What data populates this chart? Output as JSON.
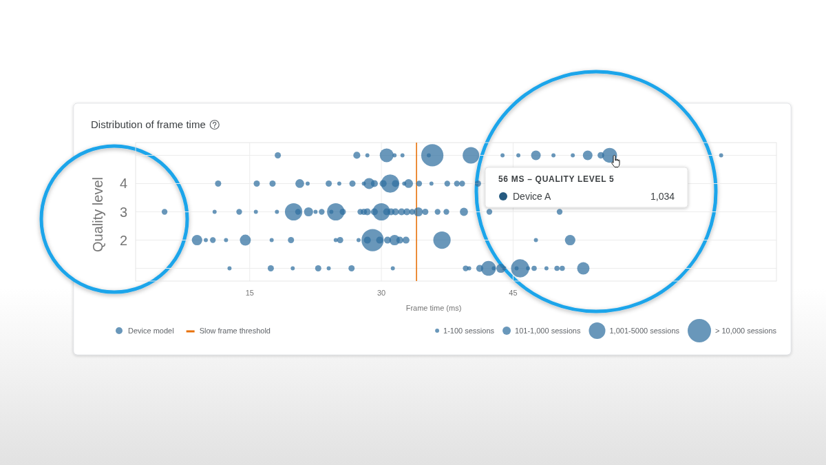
{
  "chart_data": {
    "type": "bubble",
    "title": "Distribution of frame time",
    "xlabel": "Frame time (ms)",
    "ylabel": "Quality level",
    "xlim": [
      2,
      75
    ],
    "xticks": [
      15,
      30,
      45
    ],
    "ylim": [
      0.55,
      5.45
    ],
    "yticks": [
      {
        "value": 1,
        "label": null
      },
      2,
      3,
      4,
      {
        "value": 5,
        "label": null
      }
    ],
    "grid": true,
    "legend": "bottom",
    "series": [
      {
        "name": "Device model",
        "color": "#2f6f9f",
        "x": [
          18.2,
          27.2,
          28.4,
          30.6,
          31.5,
          32.4,
          35.4,
          35.8,
          40.2,
          43.8,
          45.6,
          47.6,
          49.6,
          51.8,
          53.5,
          55.0,
          56.0,
          68.7,
          11.4,
          15.8,
          17.6,
          20.7,
          21.6,
          24.0,
          25.2,
          26.7,
          28.0,
          28.6,
          29.2,
          30.2,
          31.0,
          31.6,
          32.6,
          33.1,
          34.3,
          35.7,
          37.5,
          38.6,
          39.2,
          41.0,
          5.3,
          11.0,
          13.8,
          15.7,
          18.1,
          20.0,
          20.5,
          21.7,
          22.5,
          23.2,
          24.3,
          24.8,
          25.6,
          27.6,
          28.0,
          28.4,
          29.2,
          30.0,
          30.6,
          31.1,
          31.6,
          32.3,
          32.9,
          33.5,
          34.2,
          35.0,
          36.4,
          37.4,
          39.4,
          42.3,
          50.3,
          9.0,
          10.0,
          10.8,
          12.3,
          14.5,
          17.5,
          19.7,
          24.8,
          25.3,
          27.4,
          28.4,
          29.0,
          29.8,
          30.7,
          31.5,
          32.1,
          32.8,
          36.9,
          47.6,
          51.5,
          12.7,
          17.4,
          19.9,
          22.8,
          24.0,
          26.6,
          31.3,
          39.6,
          40.0,
          41.2,
          42.2,
          42.8,
          43.6,
          44.0,
          45.4,
          45.8,
          46.7,
          47.4,
          48.8,
          50.0,
          50.6,
          53.0
        ],
        "values": [
          5,
          5,
          5,
          5,
          5,
          5,
          5,
          5,
          5,
          5,
          5,
          5,
          5,
          5,
          5,
          5,
          5,
          5,
          4,
          4,
          4,
          4,
          4,
          4,
          4,
          4,
          4,
          4,
          4,
          4,
          4,
          4,
          4,
          4,
          4,
          4,
          4,
          4,
          4,
          4,
          3,
          3,
          3,
          3,
          3,
          3,
          3,
          3,
          3,
          3,
          3,
          3,
          3,
          3,
          3,
          3,
          3,
          3,
          3,
          3,
          3,
          3,
          3,
          3,
          3,
          3,
          3,
          3,
          3,
          3,
          3,
          2,
          2,
          2,
          2,
          2,
          2,
          2,
          2,
          2,
          2,
          2,
          2,
          2,
          2,
          2,
          2,
          2,
          2,
          2,
          2,
          1,
          1,
          1,
          1,
          1,
          1,
          1,
          1,
          1,
          1,
          1,
          1,
          1,
          1,
          1,
          1,
          1,
          1,
          1,
          1,
          1,
          1
        ],
        "sizes": [
          0.07,
          0.09,
          0.03,
          0.35,
          0.03,
          0.03,
          0.03,
          0.9,
          0.5,
          0.03,
          0.03,
          0.17,
          0.03,
          0.03,
          0.17,
          0.08,
          0.4,
          0.03,
          0.07,
          0.07,
          0.07,
          0.14,
          0.03,
          0.07,
          0.03,
          0.07,
          0.03,
          0.22,
          0.09,
          0.09,
          0.6,
          0.09,
          0.03,
          0.14,
          0.06,
          0.03,
          0.06,
          0.06,
          0.06,
          0.07,
          0.06,
          0.03,
          0.06,
          0.03,
          0.03,
          0.55,
          0.06,
          0.15,
          0.03,
          0.06,
          0.03,
          0.55,
          0.07,
          0.06,
          0.07,
          0.09,
          0.09,
          0.55,
          0.09,
          0.09,
          0.09,
          0.09,
          0.09,
          0.06,
          0.15,
          0.07,
          0.06,
          0.06,
          0.12,
          0.06,
          0.06,
          0.2,
          0.03,
          0.06,
          0.03,
          0.22,
          0.03,
          0.07,
          0.03,
          0.07,
          0.03,
          0.09,
          0.9,
          0.09,
          0.09,
          0.2,
          0.09,
          0.09,
          0.55,
          0.03,
          0.2,
          0.03,
          0.07,
          0.03,
          0.07,
          0.03,
          0.07,
          0.03,
          0.06,
          0.03,
          0.09,
          0.4,
          0.03,
          0.15,
          0.03,
          0.03,
          0.6,
          0.03,
          0.05,
          0.03,
          0.05,
          0.05,
          0.28
        ]
      }
    ],
    "size_legend": [
      {
        "value": 0.03,
        "label": "1-100 sessions"
      },
      {
        "value": 0.125,
        "label": "101-1,000 sessions"
      },
      {
        "value": 0.5,
        "label": "1,001-5000 sessions"
      },
      {
        "value": 1,
        "label": "> 10,000 sessions"
      }
    ],
    "ref_lines": [
      {
        "axis": "x",
        "value": 34,
        "label": "Slow frame threshold",
        "color": "#e8710a"
      }
    ],
    "annotations": [
      "56 MS – QUALITY LEVEL 5",
      "Device A",
      "1,034"
    ]
  }
}
